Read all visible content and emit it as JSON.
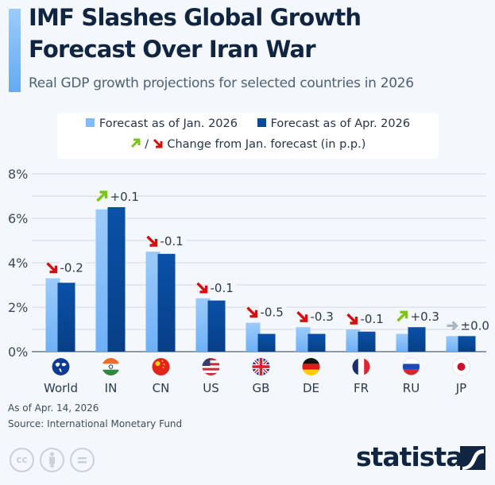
{
  "header": {
    "title_line1": "IMF Slashes Global Growth",
    "title_line2": "Forecast Over Iran War",
    "subtitle": "Real GDP growth projections for selected countries in 2026"
  },
  "legend": {
    "series1": "Forecast as of Jan. 2026",
    "series2": "Forecast as of Apr. 2026",
    "change_label": "Change from Jan. forecast (in p.p.)",
    "up_icon": "green-up-right-arrow",
    "down_icon": "red-down-right-arrow"
  },
  "colors": {
    "jan": "#7fbdf9",
    "apr": "#0a4a9a",
    "up": "#7cc41a",
    "down": "#d30f0f",
    "neutral": "#a7b6c2",
    "accent": "#7ab8f8",
    "title": "#0f2541"
  },
  "chart_data": {
    "type": "bar",
    "title": "IMF Slashes Global Growth Forecast Over Iran War",
    "subtitle": "Real GDP growth projections for selected countries in 2026",
    "xlabel": "",
    "ylabel": "",
    "ylim": [
      0,
      8
    ],
    "yticks": [
      "0%",
      "2%",
      "4%",
      "6%",
      "8%"
    ],
    "grid": true,
    "legend_position": "top-center",
    "categories": [
      "World",
      "IN",
      "CN",
      "US",
      "GB",
      "DE",
      "FR",
      "RU",
      "JP"
    ],
    "category_icons": [
      "globe-icon",
      "india-flag-icon",
      "china-flag-icon",
      "usa-flag-icon",
      "uk-flag-icon",
      "germany-flag-icon",
      "france-flag-icon",
      "russia-flag-icon",
      "japan-flag-icon"
    ],
    "series": [
      {
        "name": "Forecast as of Jan. 2026",
        "values": [
          3.3,
          6.4,
          4.5,
          2.4,
          1.3,
          1.1,
          1.0,
          0.8,
          0.7
        ]
      },
      {
        "name": "Forecast as of Apr. 2026",
        "values": [
          3.1,
          6.5,
          4.4,
          2.3,
          0.8,
          0.8,
          0.9,
          1.1,
          0.7
        ]
      }
    ],
    "changes": [
      "-0.2",
      "+0.1",
      "-0.1",
      "-0.1",
      "-0.5",
      "-0.3",
      "-0.1",
      "+0.3",
      "±0.0"
    ],
    "change_directions": [
      "down",
      "up",
      "down",
      "down",
      "down",
      "down",
      "down",
      "up",
      "neutral"
    ]
  },
  "footer": {
    "as_of": "As of Apr. 14, 2026",
    "source": "Source: International Monetary Fund",
    "license_icons": [
      "cc-icon",
      "attribution-icon",
      "no-derivatives-icon"
    ],
    "logo": "statista"
  }
}
